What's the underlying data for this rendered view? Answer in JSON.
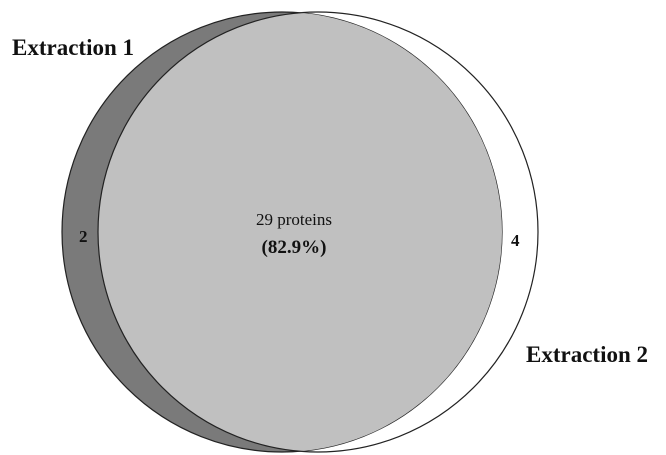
{
  "sets": [
    {
      "label": "Extraction 1",
      "unique_count": "2",
      "color": "#7a7a7a"
    },
    {
      "label": "Extraction 2",
      "unique_count": "4",
      "color": "#ffffff"
    }
  ],
  "intersection": {
    "count_text": "29 proteins",
    "percent_text": "(82.9%)",
    "color": "#c0c0c0"
  },
  "outline_color": "#222222"
}
